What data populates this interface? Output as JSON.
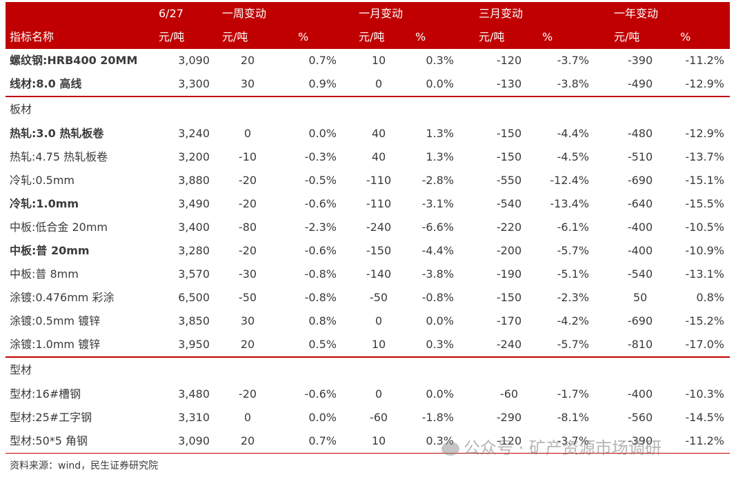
{
  "header": {
    "row1": {
      "date": "6/27",
      "week": "一周变动",
      "month": "一月变动",
      "quarter": "三月变动",
      "year": "一年变动"
    },
    "row2": {
      "name": "指标名称",
      "u1": "元/吨",
      "u2": "元/吨",
      "p2": "%",
      "u3": "元/吨",
      "p3": "%",
      "u4": "元/吨",
      "p4": "%",
      "u5": "元/吨",
      "p5": "%"
    }
  },
  "long_products": [
    {
      "name": "螺纹钢:HRB400 20MM",
      "price": "3,090",
      "w": "20",
      "wp": "0.7%",
      "m": "10",
      "mp": "0.3%",
      "q": "-120",
      "qp": "-3.7%",
      "y": "-390",
      "yp": "-11.2%"
    },
    {
      "name": "线材:8.0 高线",
      "price": "3,300",
      "w": "30",
      "wp": "0.9%",
      "m": "0",
      "mp": "0.0%",
      "q": "-130",
      "qp": "-3.8%",
      "y": "-490",
      "yp": "-12.9%"
    }
  ],
  "plate_section": "板材",
  "plates": [
    {
      "name": "热轧:3.0 热轧板卷",
      "price": "3,240",
      "w": "0",
      "wp": "0.0%",
      "m": "40",
      "mp": "1.3%",
      "q": "-150",
      "qp": "-4.4%",
      "y": "-480",
      "yp": "-12.9%"
    },
    {
      "name": "热轧:4.75 热轧板卷",
      "price": "3,200",
      "w": "-10",
      "wp": "-0.3%",
      "m": "40",
      "mp": "1.3%",
      "q": "-150",
      "qp": "-4.5%",
      "y": "-510",
      "yp": "-13.7%"
    },
    {
      "name": "冷轧:0.5mm",
      "price": "3,880",
      "w": "-20",
      "wp": "-0.5%",
      "m": "-110",
      "mp": "-2.8%",
      "q": "-550",
      "qp": "-12.4%",
      "y": "-690",
      "yp": "-15.1%"
    },
    {
      "name": "冷轧:1.0mm",
      "price": "3,490",
      "w": "-20",
      "wp": "-0.6%",
      "m": "-110",
      "mp": "-3.1%",
      "q": "-540",
      "qp": "-13.4%",
      "y": "-640",
      "yp": "-15.5%"
    },
    {
      "name": "中板:低合金 20mm",
      "price": "3,400",
      "w": "-80",
      "wp": "-2.3%",
      "m": "-240",
      "mp": "-6.6%",
      "q": "-220",
      "qp": "-6.1%",
      "y": "-400",
      "yp": "-10.5%"
    },
    {
      "name": "中板:普 20mm",
      "price": "3,280",
      "w": "-20",
      "wp": "-0.6%",
      "m": "-150",
      "mp": "-4.4%",
      "q": "-200",
      "qp": "-5.7%",
      "y": "-400",
      "yp": "-10.9%"
    },
    {
      "name": "中板:普 8mm",
      "price": "3,570",
      "w": "-30",
      "wp": "-0.8%",
      "m": "-140",
      "mp": "-3.8%",
      "q": "-190",
      "qp": "-5.1%",
      "y": "-540",
      "yp": "-13.1%"
    },
    {
      "name": "涂镀:0.476mm 彩涂",
      "price": "6,500",
      "w": "-50",
      "wp": "-0.8%",
      "m": "-50",
      "mp": "-0.8%",
      "q": "-150",
      "qp": "-2.3%",
      "y": "50",
      "yp": "0.8%"
    },
    {
      "name": "涂镀:0.5mm 镀锌",
      "price": "3,850",
      "w": "30",
      "wp": "0.8%",
      "m": "0",
      "mp": "0.0%",
      "q": "-170",
      "qp": "-4.2%",
      "y": "-690",
      "yp": "-15.2%"
    },
    {
      "name": "涂镀:1.0mm 镀锌",
      "price": "3,950",
      "w": "20",
      "wp": "0.5%",
      "m": "10",
      "mp": "0.3%",
      "q": "-240",
      "qp": "-5.7%",
      "y": "-810",
      "yp": "-17.0%"
    }
  ],
  "section_section": "型材",
  "sections": [
    {
      "name": "型材:16#槽钢",
      "price": "3,480",
      "w": "-20",
      "wp": "-0.6%",
      "m": "0",
      "mp": "0.0%",
      "q": "-60",
      "qp": "-1.7%",
      "y": "-400",
      "yp": "-10.3%"
    },
    {
      "name": "型材:25#工字钢",
      "price": "3,310",
      "w": "0",
      "wp": "0.0%",
      "m": "-60",
      "mp": "-1.8%",
      "q": "-290",
      "qp": "-8.1%",
      "y": "-560",
      "yp": "-14.5%"
    },
    {
      "name": "型材:50*5 角钢",
      "price": "3,090",
      "w": "20",
      "wp": "0.7%",
      "m": "10",
      "mp": "0.3%",
      "q": "-120",
      "qp": "-3.7%",
      "y": "-390",
      "yp": "-11.2%"
    }
  ],
  "source": "资料来源：wind，民生证券研究院",
  "watermark": "公众号 · 矿产资源市场调研",
  "colors": {
    "accent": "#c00000"
  }
}
